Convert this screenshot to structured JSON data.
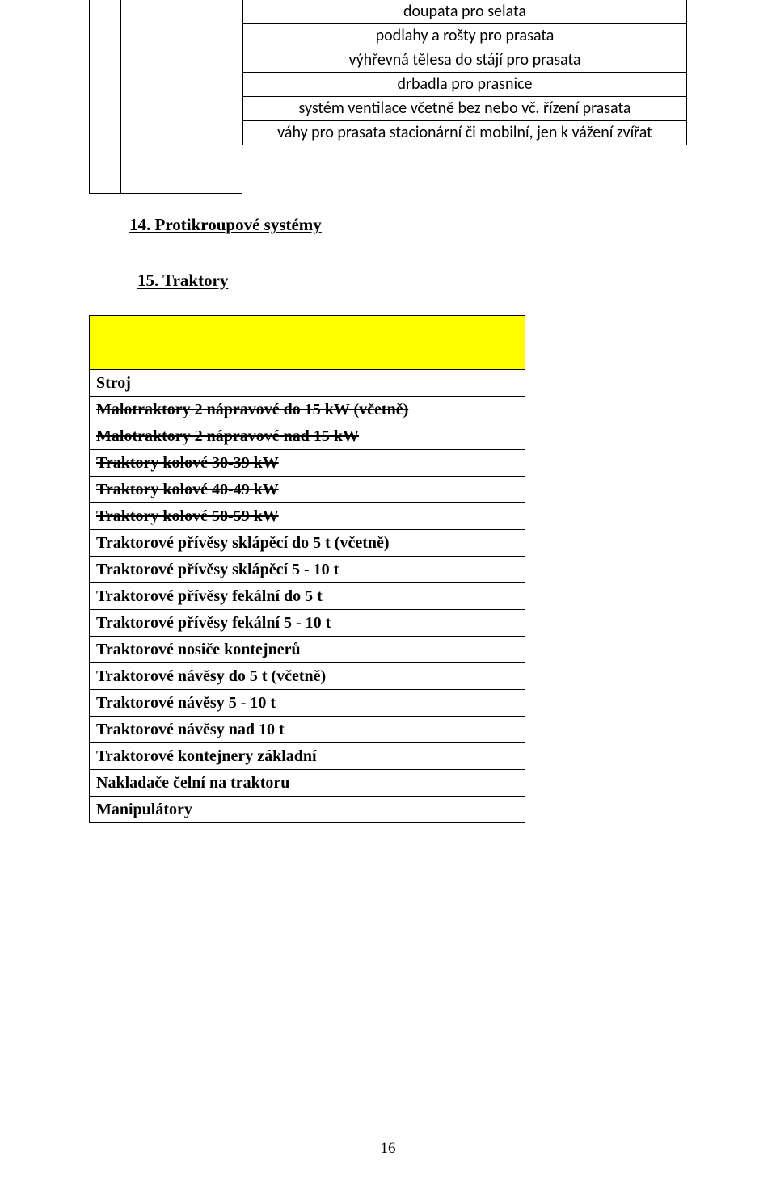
{
  "right_table_rows": [
    "doupata pro selata",
    "podlahy a rošty pro prasata",
    "výhřevná tělesa do stájí pro prasata",
    "drbadla pro prasnice",
    "systém ventilace včetně bez nebo vč. řízení prasata",
    "váhy pro prasata stacionární či mobilní, jen k vážení zvířat"
  ],
  "section14": "14. Protikroupové systémy",
  "section15": "15. Traktory",
  "traktory_header": "Stroj",
  "traktory_rows": [
    {
      "text": "Malotraktory 2 nápravové do 15 kW (včetně)",
      "strike": true
    },
    {
      "text": "Malotraktory 2 nápravové nad 15 kW",
      "strike": true
    },
    {
      "text": "Traktory kolové 30-39 kW",
      "strike": true
    },
    {
      "text": "Traktory kolové 40-49 kW",
      "strike": true
    },
    {
      "text": "Traktory kolové 50-59 kW",
      "strike": true
    },
    {
      "text": "Traktorové přívěsy sklápěcí do  5 t (včetně)",
      "strike": false
    },
    {
      "text": "Traktorové přívěsy sklápěcí   5 - 10  t",
      "strike": false
    },
    {
      "text": "Traktorové přívěsy fekální do 5 t",
      "strike": false
    },
    {
      "text": "Traktorové přívěsy fekální  5 - 10 t",
      "strike": false
    },
    {
      "text": "Traktorové nosiče kontejnerů",
      "strike": false
    },
    {
      "text": "Traktorové návěsy do  5 t (včetně)",
      "strike": false
    },
    {
      "text": "Traktorové návěsy  5 - 10 t",
      "strike": false
    },
    {
      "text": "Traktorové návěsy nad 10 t",
      "strike": false
    },
    {
      "text": "Traktorové kontejnery základní",
      "strike": false
    },
    {
      "text": "Nakladače čelní na traktoru",
      "strike": false
    },
    {
      "text": "Manipulátory",
      "strike": false
    }
  ],
  "page_number": "16"
}
